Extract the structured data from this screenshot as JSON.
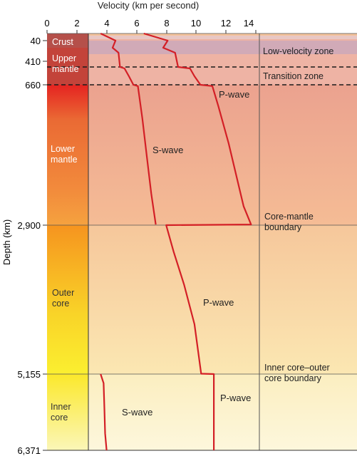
{
  "axes": {
    "x_title": "Velocity (km per second)",
    "x_ticks": [
      "0",
      "2",
      "4",
      "6",
      "8",
      "10",
      "12",
      "14"
    ],
    "y_title": "Depth (km)",
    "depth_ticks": [
      "40",
      "410",
      "660",
      "2,900",
      "5,155",
      "6,371"
    ]
  },
  "layers": [
    {
      "label": "Crust"
    },
    {
      "label": "Upper\nmantle"
    },
    {
      "label": "Lower\nmantle"
    },
    {
      "label": "Outer\ncore"
    },
    {
      "label": "Inner\ncore"
    }
  ],
  "zones": [
    {
      "label": "Low-velocity zone"
    },
    {
      "label": "Transition zone"
    },
    {
      "label": "Core-mantle\nboundary"
    },
    {
      "label": "Inner core–outer\ncore boundary"
    }
  ],
  "wave_labels": {
    "p_upper": "P-wave",
    "s_mantle": "S-wave",
    "p_outer": "P-wave",
    "p_inner": "P-wave",
    "s_inner": "S-wave"
  },
  "colors": {
    "wave_line": "#d31f26",
    "crust": "#b5504a"
  },
  "chart_data": {
    "type": "line",
    "x_unit": "km per second",
    "y_unit": "km (depth)",
    "xlim": [
      0,
      14
    ],
    "y_reversed": true,
    "series": [
      {
        "name": "P-wave",
        "points": [
          [
            6.5,
            0
          ],
          [
            8.1,
            40
          ],
          [
            7.8,
            140
          ],
          [
            8.6,
            210
          ],
          [
            8.8,
            410
          ],
          [
            9.6,
            430
          ],
          [
            9.9,
            540
          ],
          [
            10.3,
            660
          ],
          [
            11.1,
            680
          ],
          [
            11.5,
            1000
          ],
          [
            12.2,
            1600
          ],
          [
            12.8,
            2200
          ],
          [
            13.2,
            2600
          ],
          [
            13.7,
            2890
          ],
          [
            8.0,
            2900
          ],
          [
            8.5,
            3300
          ],
          [
            9.2,
            3800
          ],
          [
            9.9,
            4400
          ],
          [
            10.35,
            5150
          ],
          [
            11.2,
            5155
          ],
          [
            11.2,
            6371
          ]
        ]
      },
      {
        "name": "S-wave",
        "points": [
          [
            3.6,
            0
          ],
          [
            4.6,
            40
          ],
          [
            4.4,
            140
          ],
          [
            4.8,
            210
          ],
          [
            4.9,
            410
          ],
          [
            5.2,
            430
          ],
          [
            5.5,
            540
          ],
          [
            5.8,
            660
          ],
          [
            6.1,
            680
          ],
          [
            6.4,
            1200
          ],
          [
            6.7,
            1800
          ],
          [
            7.0,
            2400
          ],
          [
            7.3,
            2890
          ]
        ]
      },
      {
        "name": "S-wave (inner core)",
        "points": [
          [
            3.6,
            5155
          ],
          [
            3.8,
            5300
          ],
          [
            3.85,
            5700
          ],
          [
            3.9,
            6100
          ],
          [
            4.0,
            6371
          ]
        ]
      }
    ]
  }
}
